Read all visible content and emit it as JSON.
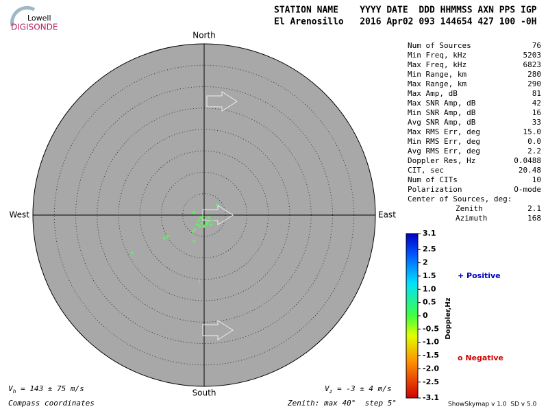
{
  "header": {
    "logo_top": "Lowell",
    "logo_bottom": "DIGISONDE",
    "line1": "STATION NAME    YYYY DATE  DDD HHMMSS AXN PPS IGP",
    "line2": "El Arenosillo   2016 Apr02 093 144654 427 100 -0H"
  },
  "chart_data": {
    "type": "skymap",
    "directions": {
      "north": "North",
      "south": "South",
      "east": "East",
      "west": "West"
    },
    "zenith_max": 40,
    "ring_step": 5,
    "point_color": "#55ff55",
    "x": [
      3.0,
      -2.4,
      -0.3,
      -1.3,
      0.3,
      1.1,
      1.9,
      -1.6,
      -0.5,
      0.6,
      1.6,
      -1.0,
      -2.1,
      -2.6,
      -2.4,
      -8.5,
      -9.3,
      -16.8,
      -1.1,
      0.0,
      0.8,
      -0.8
    ],
    "y": [
      2.4,
      0.6,
      -0.3,
      -1.3,
      -1.0,
      -0.6,
      -1.3,
      -2.2,
      -1.9,
      -2.1,
      -2.2,
      -2.6,
      -3.4,
      -3.8,
      -6.1,
      -5.0,
      -5.4,
      -8.8,
      -15.5,
      -2.6,
      -1.6,
      -0.6
    ],
    "colorbar": {
      "label": "Doppler,Hz",
      "lim": [
        -3.1,
        3.1
      ],
      "ticks": [
        3.1,
        2.5,
        2,
        1.5,
        {
          "value": 1,
          "label": "1.0"
        },
        0.5,
        0,
        -0.5,
        {
          "value": -1,
          "label": "-1.0"
        },
        -1.5,
        {
          "value": -2,
          "label": "-2.0"
        },
        -2.5,
        -3.1
      ]
    },
    "legend": {
      "positive": "+ Positive",
      "negative": "o Negative"
    }
  },
  "stats": [
    [
      "Num of Sources",
      "76"
    ],
    [
      "Min Freq, kHz",
      "5203"
    ],
    [
      "Max Freq, kHz",
      "6823"
    ],
    [
      "Min Range, km",
      "280"
    ],
    [
      "Max Range, km",
      "290"
    ],
    [
      "Max Amp, dB",
      "81"
    ],
    [
      "Max SNR Amp, dB",
      "42"
    ],
    [
      "Min SNR Amp, dB",
      "16"
    ],
    [
      "Avg SNR Amp, dB",
      "33"
    ],
    [
      "Max RMS Err, deg",
      "15.0"
    ],
    [
      "Min RMS Err, deg",
      "0.0"
    ],
    [
      "Avg RMS Err, deg",
      "2.2"
    ],
    [
      "Doppler Res, Hz",
      "0.0488"
    ],
    [
      "CIT, sec",
      "20.48"
    ],
    [
      "Num of CITs",
      "10"
    ],
    [
      "Polarization",
      "O-mode"
    ]
  ],
  "center": {
    "title": "Center of Sources, deg:",
    "rows": [
      [
        "Zenith",
        "2.1"
      ],
      [
        "Azimuth",
        "168"
      ]
    ]
  },
  "footer": {
    "vh_symbol": "V",
    "vh_sub": "h",
    "vh_text": " = 143 ± 75 m/s",
    "vz_symbol": "V",
    "vz_sub": "z",
    "vz_text": " = -3 ± 4 m/s",
    "coords": "Compass coordinates",
    "zenith": "Zenith: max 40°  step 5°",
    "version": "ShowSkymap v 1.0  SD v 5.0"
  }
}
